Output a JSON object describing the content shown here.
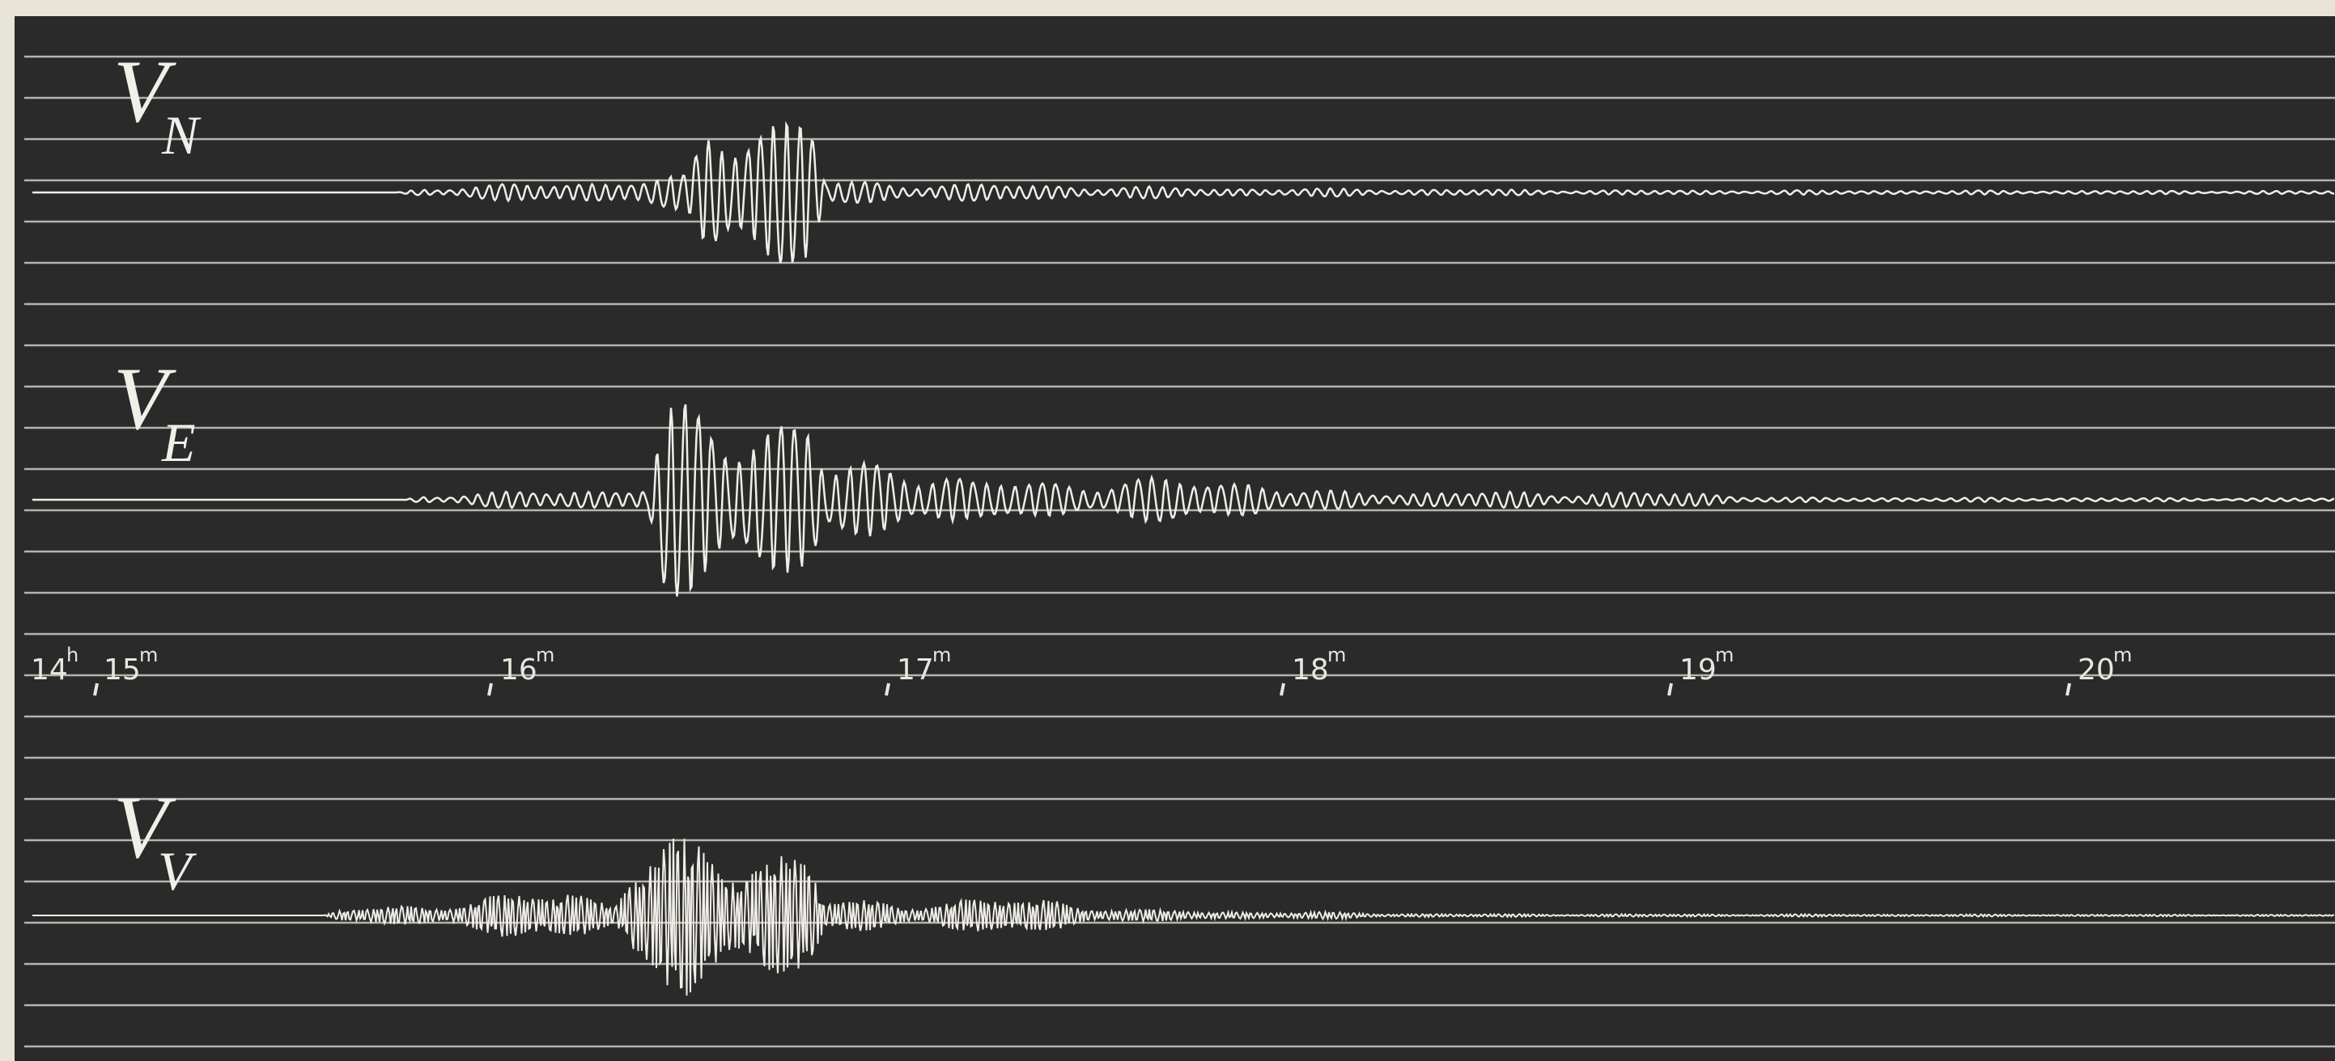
{
  "traces": [
    {
      "label": "V",
      "subscript": "N"
    },
    {
      "label": "V",
      "subscript": "E"
    },
    {
      "label": "V",
      "subscript": "V"
    }
  ],
  "time_marks": [
    {
      "text": "14",
      "sup": "h"
    },
    {
      "text": "15",
      "sup": "m"
    },
    {
      "text": "16",
      "sup": "m"
    },
    {
      "text": "17",
      "sup": "m"
    },
    {
      "text": "18",
      "sup": "m"
    },
    {
      "text": "19",
      "sup": "m"
    },
    {
      "text": "20",
      "sup": "m"
    }
  ]
}
